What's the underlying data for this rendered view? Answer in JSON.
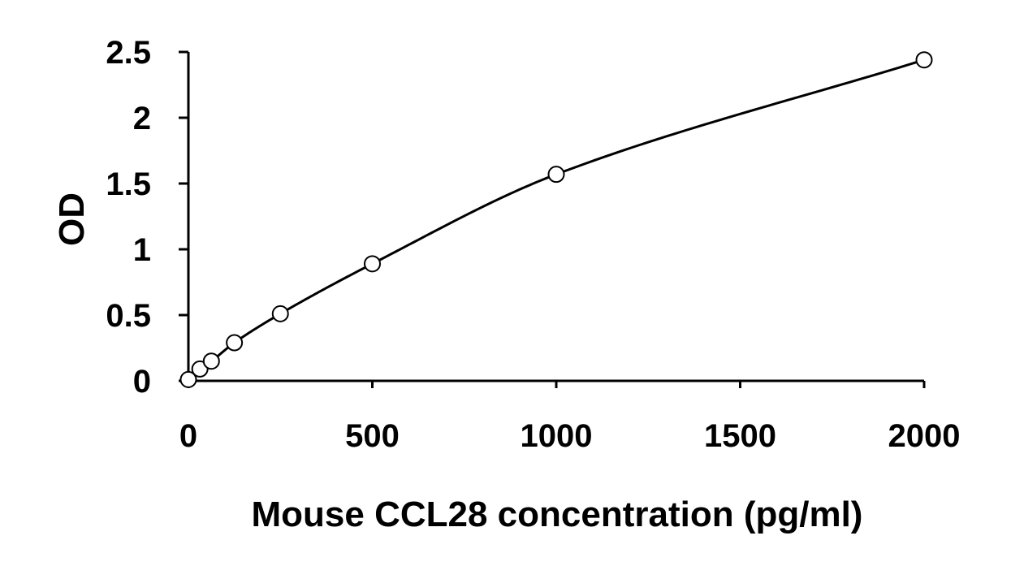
{
  "chart_data": {
    "type": "scatter",
    "title": "",
    "xlabel": "Mouse CCL28 concentration (pg/ml)",
    "ylabel": "OD",
    "xlim": [
      0,
      2000
    ],
    "ylim": [
      0,
      2.5
    ],
    "x_ticks": [
      "0",
      "500",
      "1000",
      "1500",
      "2000"
    ],
    "y_ticks": [
      "0",
      "0.5",
      "1",
      "1.5",
      "2",
      "2.5"
    ],
    "grid": false,
    "legend": "none",
    "series": [
      {
        "x": [
          0,
          31.25,
          62.5,
          125,
          250,
          500,
          1000,
          2000
        ],
        "y": [
          0.01,
          0.09,
          0.15,
          0.29,
          0.51,
          0.89,
          1.57,
          2.44
        ],
        "marker": "open-circle",
        "fit": "smooth-curve"
      }
    ],
    "color": "#000000"
  }
}
